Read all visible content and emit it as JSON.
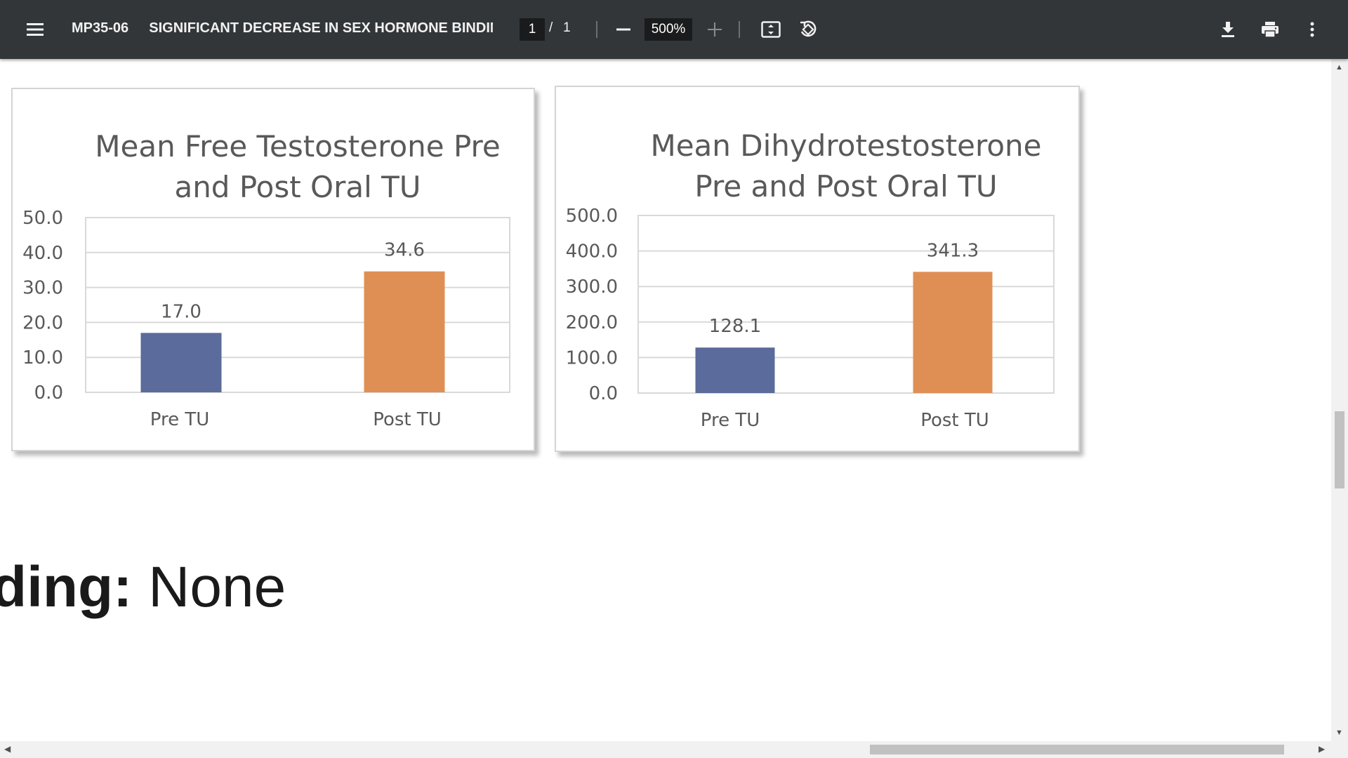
{
  "toolbar": {
    "doc_id": "MP35-06",
    "doc_title": "SIGNIFICANT DECREASE IN SEX HORMONE BINDIN...",
    "page_current": "1",
    "page_sep": "/",
    "page_total": "1",
    "zoom": "500%",
    "icons": [
      "menu-icon",
      "minus-icon",
      "plus-icon",
      "fit-page-icon",
      "rotate-icon",
      "download-icon",
      "print-icon",
      "more-vert-icon"
    ]
  },
  "document": {
    "funding_label": "ding:",
    "funding_value": "None"
  },
  "colors": {
    "toolbar_bg": "#323639",
    "pre_bar": "#5b6b9b",
    "post_bar": "#e08f54",
    "grid": "#d9d9d9",
    "text": "#595959"
  },
  "chart_data": [
    {
      "type": "bar",
      "title": "Mean Free Testosterone Pre and Post Oral TU",
      "title_lines": [
        "Mean Free Testosterone Pre",
        "and Post Oral TU"
      ],
      "categories": [
        "Pre TU",
        "Post TU"
      ],
      "values": [
        17.0,
        34.6
      ],
      "value_labels": [
        "17.0",
        "34.6"
      ],
      "yticks": [
        "0.0",
        "10.0",
        "20.0",
        "30.0",
        "40.0",
        "50.0"
      ],
      "ylim": [
        0,
        50
      ],
      "grid": true
    },
    {
      "type": "bar",
      "title": "Mean Dihydrotestosterone Pre and Post Oral TU",
      "title_lines": [
        "Mean Dihydrotestosterone",
        "Pre and Post Oral TU"
      ],
      "categories": [
        "Pre TU",
        "Post TU"
      ],
      "values": [
        128.1,
        341.3
      ],
      "value_labels": [
        "128.1",
        "341.3"
      ],
      "yticks": [
        "0.0",
        "100.0",
        "200.0",
        "300.0",
        "400.0",
        "500.0"
      ],
      "ylim": [
        0,
        500
      ],
      "grid": true
    }
  ]
}
